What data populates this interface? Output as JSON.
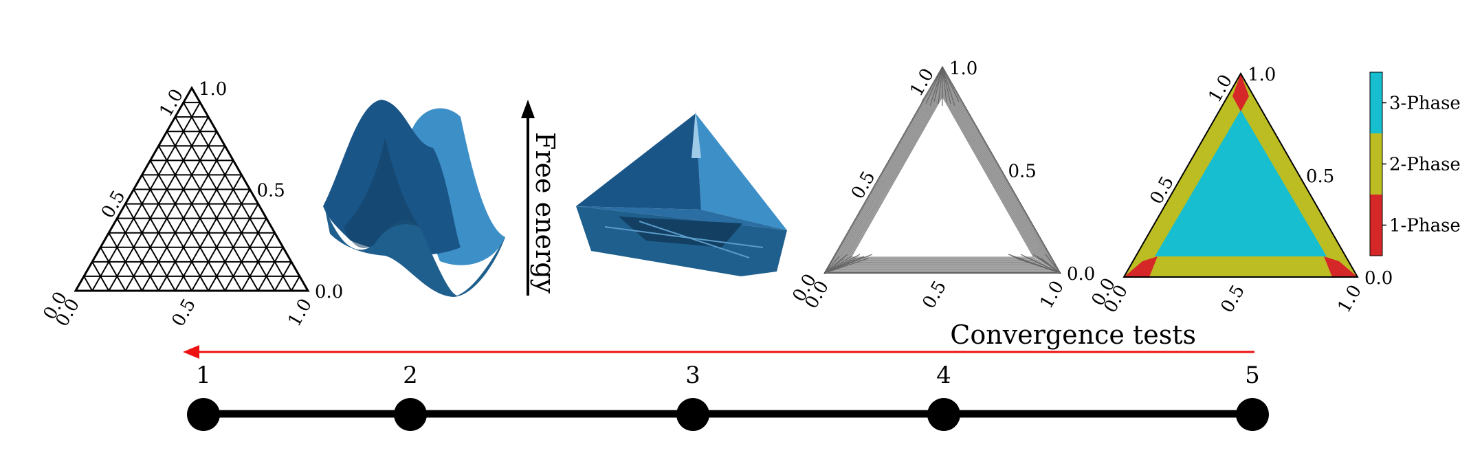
{
  "ternary_ticks": {
    "left": [
      "0.0",
      "0.5",
      "1.0"
    ],
    "right": [
      "1.0",
      "0.5",
      "0.0"
    ],
    "bottom": [
      "0.0",
      "0.5",
      "1.0"
    ]
  },
  "energy_axis_label": "Free energy",
  "convergence_label": "Convergence tests",
  "pipeline_steps": [
    "1",
    "2",
    "3",
    "4",
    "5"
  ],
  "phase_legend": [
    {
      "label": "3-Phase",
      "color": "#17becf"
    },
    {
      "label": "2-Phase",
      "color": "#bcbd22"
    },
    {
      "label": "1-Phase",
      "color": "#d62728"
    }
  ],
  "colors": {
    "surface_dark": "#123f62",
    "surface_mid": "#1f5f8d",
    "surface_light": "#3d8fc8",
    "arrow_red": "#ee1111",
    "hull_gray": "#9a9a9a"
  }
}
